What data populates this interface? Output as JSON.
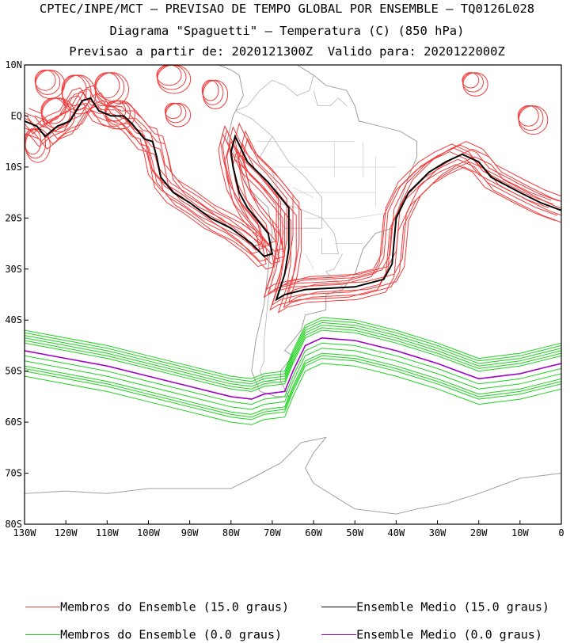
{
  "header": {
    "line1": "CPTEC/INPE/MCT – PREVISAO DE TEMPO GLOBAL POR ENSEMBLE – TQ0126L028",
    "line2": "Diagrama \"Spaguetti\" – Temperatura (C) (850 hPa)",
    "line3": "Previsao a partir de: 2020121300Z  Valido para: 2020122000Z"
  },
  "map": {
    "lon_range": [
      -130,
      0
    ],
    "lat_range": [
      -80,
      10
    ],
    "lon_ticks": [
      {
        "value": -130,
        "label": "130W"
      },
      {
        "value": -120,
        "label": "120W"
      },
      {
        "value": -110,
        "label": "110W"
      },
      {
        "value": -100,
        "label": "100W"
      },
      {
        "value": -90,
        "label": "90W"
      },
      {
        "value": -80,
        "label": "80W"
      },
      {
        "value": -70,
        "label": "70W"
      },
      {
        "value": -60,
        "label": "60W"
      },
      {
        "value": -50,
        "label": "50W"
      },
      {
        "value": -40,
        "label": "40W"
      },
      {
        "value": -30,
        "label": "30W"
      },
      {
        "value": -20,
        "label": "20W"
      },
      {
        "value": -10,
        "label": "10W"
      },
      {
        "value": 0,
        "label": "0"
      }
    ],
    "lat_ticks": [
      {
        "value": 10,
        "label": "10N"
      },
      {
        "value": 0,
        "label": "EQ"
      },
      {
        "value": -10,
        "label": "10S"
      },
      {
        "value": -20,
        "label": "20S"
      },
      {
        "value": -30,
        "label": "30S"
      },
      {
        "value": -40,
        "label": "40S"
      },
      {
        "value": -50,
        "label": "50S"
      },
      {
        "value": -60,
        "label": "60S"
      },
      {
        "value": -70,
        "label": "70S"
      },
      {
        "value": -80,
        "label": "80S"
      }
    ],
    "colors": {
      "member_15": "#f03c3c",
      "mean_15": "#000000",
      "member_0": "#1ed21e",
      "mean_0": "#a000c8",
      "coast": "#a0a0a0"
    },
    "mean_15": [
      [
        -130,
        -1
      ],
      [
        -127,
        -2
      ],
      [
        -125,
        -4
      ],
      [
        -122,
        -2
      ],
      [
        -119,
        -1
      ],
      [
        -116,
        3
      ],
      [
        -114,
        3.5
      ],
      [
        -112,
        1
      ],
      [
        -109,
        0
      ],
      [
        -106,
        0
      ],
      [
        -104,
        -1.5
      ],
      [
        -101,
        -4.5
      ],
      [
        -99,
        -5
      ],
      [
        -98,
        -8
      ],
      [
        -97,
        -12
      ],
      [
        -94,
        -15
      ],
      [
        -90,
        -17
      ],
      [
        -85,
        -20
      ],
      [
        -80,
        -22
      ],
      [
        -75,
        -25
      ],
      [
        -72,
        -27.5
      ],
      [
        -70,
        -27
      ],
      [
        -71,
        -23
      ],
      [
        -76,
        -18
      ],
      [
        -78,
        -15
      ],
      [
        -79.5,
        -10
      ],
      [
        -80,
        -7
      ],
      [
        -79,
        -4
      ],
      [
        -76,
        -9
      ],
      [
        -71,
        -13
      ],
      [
        -66,
        -18
      ],
      [
        -66,
        -26
      ],
      [
        -67,
        -31
      ],
      [
        -69,
        -36
      ],
      [
        -67,
        -35
      ],
      [
        -62,
        -34
      ],
      [
        -50,
        -33.5
      ],
      [
        -43,
        -32
      ],
      [
        -41,
        -29
      ],
      [
        -40,
        -20
      ],
      [
        -37,
        -15
      ],
      [
        -32,
        -11
      ],
      [
        -28,
        -9
      ],
      [
        -24,
        -7.5
      ],
      [
        -20,
        -9
      ],
      [
        -17,
        -12
      ],
      [
        -10,
        -15
      ],
      [
        -5,
        -17
      ],
      [
        0,
        -18.5
      ]
    ],
    "mean_0": [
      [
        -130,
        -46
      ],
      [
        -120,
        -47.5
      ],
      [
        -110,
        -49
      ],
      [
        -100,
        -51
      ],
      [
        -90,
        -53
      ],
      [
        -80,
        -55
      ],
      [
        -75,
        -55.5
      ],
      [
        -72,
        -54.5
      ],
      [
        -67,
        -54
      ],
      [
        -65,
        -50
      ],
      [
        -62,
        -45
      ],
      [
        -58,
        -43.5
      ],
      [
        -50,
        -44
      ],
      [
        -40,
        -46
      ],
      [
        -30,
        -48.5
      ],
      [
        -25,
        -50
      ],
      [
        -20,
        -51.5
      ],
      [
        -15,
        -51
      ],
      [
        -10,
        -50.5
      ],
      [
        -5,
        -49.5
      ],
      [
        0,
        -48.5
      ]
    ],
    "spread_15": [
      [
        0,
        0
      ],
      [
        -2,
        1.2
      ],
      [
        1.8,
        -1.5
      ],
      [
        -1.5,
        -2
      ],
      [
        2.5,
        1
      ],
      [
        -3,
        0.5
      ],
      [
        1,
        2.5
      ],
      [
        -1,
        -1
      ],
      [
        3,
        -0.5
      ],
      [
        -2.5,
        2
      ],
      [
        0.5,
        -2.5
      ],
      [
        -0.5,
        1.8
      ]
    ],
    "spread_0": [
      [
        0,
        -3
      ],
      [
        0,
        3
      ],
      [
        0,
        -2
      ],
      [
        0,
        2
      ],
      [
        0,
        -4
      ],
      [
        0,
        4
      ],
      [
        0,
        -1
      ],
      [
        0,
        1.5
      ],
      [
        0,
        -5
      ],
      [
        0,
        2.5
      ],
      [
        0,
        -3.5
      ],
      [
        0,
        3.5
      ]
    ],
    "red_blobs": [
      {
        "c": [
          -125,
          7
        ],
        "r": [
          2.5,
          2
        ]
      },
      {
        "c": [
          -123,
          1
        ],
        "r": [
          3,
          2.5
        ]
      },
      {
        "c": [
          -118,
          5
        ],
        "r": [
          3,
          3
        ]
      },
      {
        "c": [
          -110,
          6
        ],
        "r": [
          3,
          2.5
        ]
      },
      {
        "c": [
          -108,
          1
        ],
        "r": [
          2.5,
          2
        ]
      },
      {
        "c": [
          -95,
          8
        ],
        "r": [
          3,
          2
        ]
      },
      {
        "c": [
          -85,
          5
        ],
        "r": [
          2,
          2
        ]
      },
      {
        "c": [
          -94,
          1
        ],
        "r": [
          2,
          1.5
        ]
      },
      {
        "c": [
          -8,
          0
        ],
        "r": [
          2.5,
          2
        ]
      },
      {
        "c": [
          -22,
          7
        ],
        "r": [
          2,
          1.5
        ]
      },
      {
        "c": [
          -128,
          -5
        ],
        "r": [
          2,
          2.5
        ]
      }
    ],
    "coast_south_america": [
      [
        -78,
        8
      ],
      [
        -77,
        4
      ],
      [
        -79.5,
        0
      ],
      [
        -81,
        -5
      ],
      [
        -78,
        -9
      ],
      [
        -76,
        -14
      ],
      [
        -71,
        -18
      ],
      [
        -70,
        -23
      ],
      [
        -71,
        -30
      ],
      [
        -72,
        -37
      ],
      [
        -74,
        -44
      ],
      [
        -75,
        -50
      ],
      [
        -73,
        -54
      ],
      [
        -69,
        -55
      ],
      [
        -66,
        -55
      ],
      [
        -68,
        -52
      ],
      [
        -68,
        -50
      ],
      [
        -65,
        -47
      ],
      [
        -67,
        -46
      ],
      [
        -63,
        -42
      ],
      [
        -62,
        -39
      ],
      [
        -57,
        -38
      ],
      [
        -57,
        -35
      ],
      [
        -53,
        -34
      ],
      [
        -50,
        -31
      ],
      [
        -48,
        -26
      ],
      [
        -45,
        -23
      ],
      [
        -41,
        -22
      ],
      [
        -39,
        -17
      ],
      [
        -37,
        -12
      ],
      [
        -35,
        -8
      ],
      [
        -35,
        -5
      ],
      [
        -39,
        -3
      ],
      [
        -44,
        -2
      ],
      [
        -49,
        -1
      ],
      [
        -50,
        2
      ],
      [
        -52,
        5
      ],
      [
        -57,
        6
      ],
      [
        -60,
        8
      ],
      [
        -64,
        10
      ],
      [
        -71,
        12
      ]
    ],
    "coast_central_america": [
      [
        -78,
        8
      ],
      [
        -80,
        9
      ],
      [
        -83,
        10
      ]
    ],
    "coast_antarctica": [
      [
        -130,
        -74
      ],
      [
        -120,
        -73.5
      ],
      [
        -110,
        -74
      ],
      [
        -100,
        -73
      ],
      [
        -90,
        -73
      ],
      [
        -80,
        -73
      ],
      [
        -75,
        -71
      ],
      [
        -68,
        -68
      ],
      [
        -63,
        -64
      ],
      [
        -57,
        -63
      ],
      [
        -60,
        -66
      ],
      [
        -62,
        -69
      ],
      [
        -60,
        -72
      ],
      [
        -50,
        -77
      ],
      [
        -40,
        -78
      ],
      [
        -35,
        -77
      ],
      [
        -28,
        -76
      ],
      [
        -20,
        -74
      ],
      [
        -10,
        -71
      ],
      [
        0,
        -70
      ]
    ],
    "borders": [
      [
        [
          -79,
          1
        ],
        [
          -75,
          -0.5
        ],
        [
          -70,
          -4
        ]
      ],
      [
        [
          -79,
          1
        ],
        [
          -76,
          2
        ],
        [
          -73,
          5
        ],
        [
          -70,
          7
        ],
        [
          -67,
          6
        ]
      ],
      [
        [
          -70,
          -4
        ],
        [
          -73,
          -8
        ],
        [
          -70,
          -11
        ],
        [
          -69,
          -13
        ],
        [
          -69,
          -17
        ]
      ],
      [
        [
          -69,
          -17
        ],
        [
          -64,
          -18
        ],
        [
          -58,
          -20
        ],
        [
          -58,
          -22
        ],
        [
          -62,
          -22
        ],
        [
          -67,
          -22
        ],
        [
          -69,
          -19
        ]
      ],
      [
        [
          -58,
          -20
        ],
        [
          -55,
          -23
        ],
        [
          -54,
          -27
        ],
        [
          -58,
          -27
        ],
        [
          -58,
          -24
        ]
      ],
      [
        [
          -70,
          -4
        ],
        [
          -66,
          -9
        ],
        [
          -62,
          -12
        ],
        [
          -60,
          -14
        ],
        [
          -58,
          -16
        ],
        [
          -58,
          -20
        ]
      ],
      [
        [
          -67,
          6
        ],
        [
          -64,
          4
        ],
        [
          -61,
          5
        ],
        [
          -60,
          8
        ]
      ],
      [
        [
          -60,
          5
        ],
        [
          -59,
          2
        ],
        [
          -56,
          2
        ],
        [
          -54,
          3.5
        ],
        [
          -52,
          2
        ]
      ],
      [
        [
          -53,
          -27
        ],
        [
          -55,
          -30
        ],
        [
          -57,
          -30.5
        ],
        [
          -53,
          -33.5
        ]
      ],
      [
        [
          -67,
          -22
        ],
        [
          -68,
          -25
        ],
        [
          -69,
          -28
        ],
        [
          -70,
          -32
        ],
        [
          -71,
          -36
        ],
        [
          -71.5,
          -40
        ],
        [
          -72,
          -44
        ],
        [
          -72,
          -48
        ],
        [
          -73,
          -50
        ],
        [
          -72,
          -52
        ],
        [
          -69,
          -52
        ]
      ]
    ],
    "grid_lines": [
      [
        [
          -74,
          -5
        ],
        [
          -60,
          -5
        ],
        [
          -50,
          -5
        ]
      ],
      [
        [
          -70,
          -10
        ],
        [
          -55,
          -10
        ],
        [
          -40,
          -10
        ]
      ],
      [
        [
          -70,
          -15
        ],
        [
          -55,
          -15
        ],
        [
          -45,
          -15
        ]
      ],
      [
        [
          -62,
          -20
        ],
        [
          -50,
          -20
        ],
        [
          -42,
          -19
        ]
      ],
      [
        [
          -55,
          -25
        ],
        [
          -48,
          -25
        ]
      ],
      [
        [
          -62,
          -27
        ],
        [
          -60,
          -30
        ]
      ],
      [
        [
          -55,
          -5
        ],
        [
          -55,
          -12
        ]
      ],
      [
        [
          -48,
          -5
        ],
        [
          -48,
          -12
        ]
      ],
      [
        [
          -45,
          -8
        ],
        [
          -45,
          -18
        ]
      ],
      [
        [
          -65,
          -14
        ],
        [
          -60,
          -16
        ]
      ]
    ]
  },
  "legend": {
    "member_15": "Membros do Ensemble (15.0 graus)",
    "mean_15": "Ensemble Medio (15.0 graus)",
    "member_0": "Membros do Ensemble (0.0 graus)",
    "mean_0": "Ensemble Medio (0.0 graus)"
  }
}
